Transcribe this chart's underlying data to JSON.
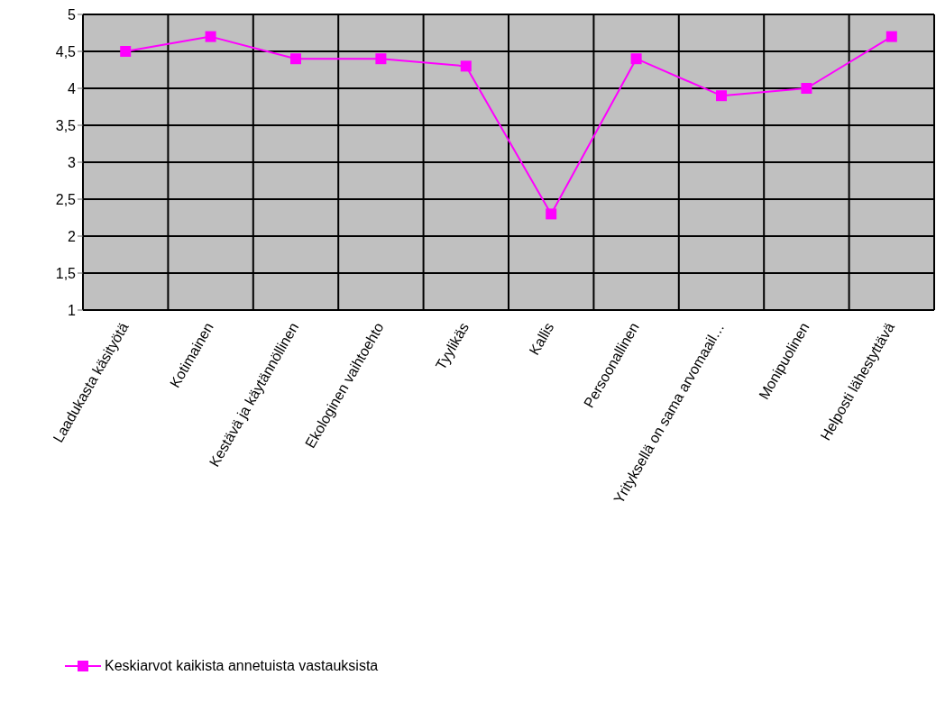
{
  "chart_data": {
    "type": "line",
    "categories": [
      "Laadukasta käsityötä",
      "Kotimainen",
      "Kestävä ja käytännöllinen",
      "Ekologinen vaihtoehto",
      "Tyylikäs",
      "Kallis",
      "Persoonallinen",
      "Yrityksellä on sama arvomaail…",
      "Monipuolinen",
      "Helposti lähestyttävä"
    ],
    "series": [
      {
        "name": "Keskiarvot kaikista annetuista vastauksista",
        "color": "#ff00ff",
        "values": [
          4.5,
          4.7,
          4.4,
          4.4,
          4.3,
          2.3,
          4.4,
          3.9,
          4.0,
          4.7
        ]
      }
    ],
    "ylim": [
      1,
      5
    ],
    "yticks": [
      1,
      {
        "value": 1.5,
        "label": "1,5"
      },
      2,
      {
        "value": 2.5,
        "label": "2,5"
      },
      3,
      {
        "value": 3.5,
        "label": "3,5"
      },
      4,
      {
        "value": 4.5,
        "label": "4,5"
      },
      5
    ],
    "grid": true,
    "legend": "bottom left",
    "marker": "square",
    "line_style": "solid"
  }
}
